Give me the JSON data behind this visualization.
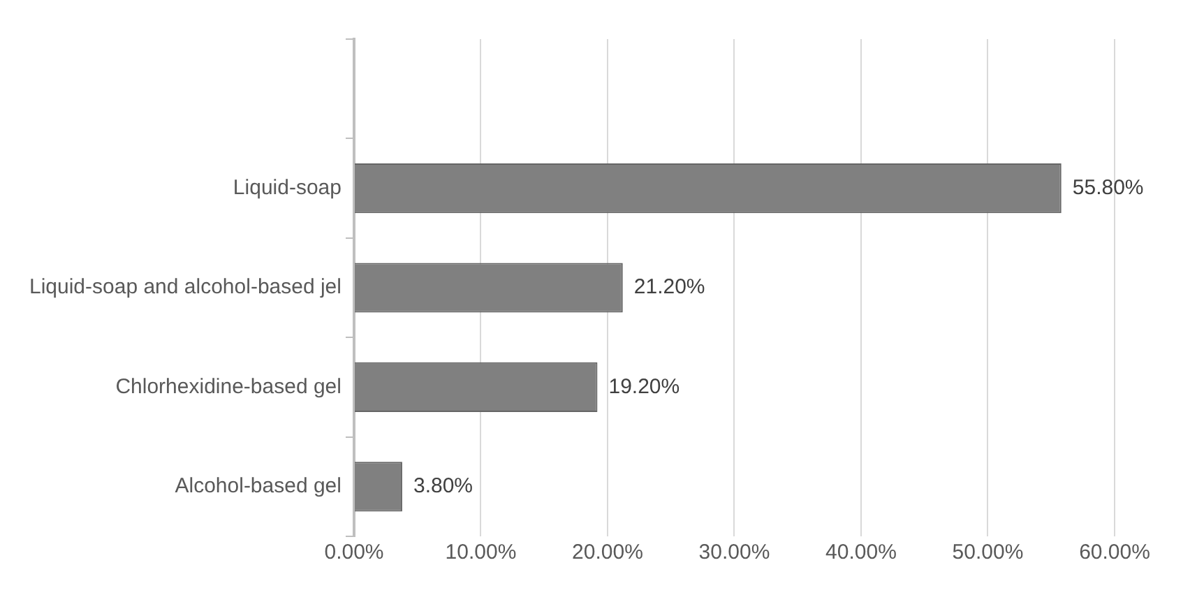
{
  "chart_data": {
    "type": "bar",
    "orientation": "horizontal",
    "categories": [
      null,
      "Liquid-soap",
      "Liquid-soap and alcohol-based jel",
      "Chlorhexidine-based gel",
      "Alcohol-based gel"
    ],
    "values": [
      null,
      55.8,
      21.2,
      19.2,
      3.8
    ],
    "value_labels": [
      null,
      "55.80%",
      "21.20%",
      "19.20%",
      "3.80%"
    ],
    "color": "#808080",
    "xlim": [
      0,
      60
    ],
    "xticks": [
      {
        "value": 0,
        "label": "0.00%"
      },
      {
        "value": 10,
        "label": "10.00%"
      },
      {
        "value": 20,
        "label": "20.00%"
      },
      {
        "value": 30,
        "label": "30.00%"
      },
      {
        "value": 40,
        "label": "40.00%"
      },
      {
        "value": 50,
        "label": "50.00%"
      },
      {
        "value": 60,
        "label": "60.00%"
      }
    ],
    "grid": "x",
    "legend": false
  }
}
